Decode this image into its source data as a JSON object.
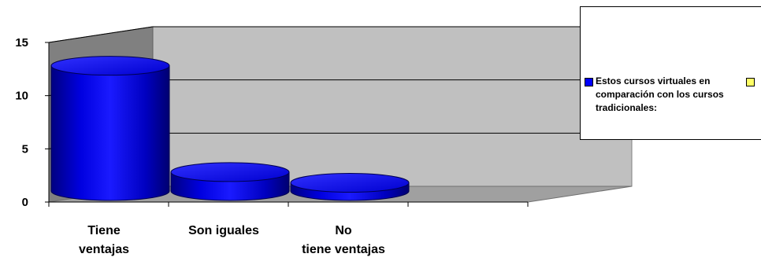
{
  "chart_data": {
    "type": "bar",
    "style": "3d-cylinder",
    "categories": [
      "Tiene ventajas",
      "Son iguales",
      "No tiene ventajas",
      ""
    ],
    "series": [
      {
        "name": "Estos cursos virtuales en comparación con los cursos tradicionales:",
        "color": "#0000ff",
        "values": [
          12,
          2,
          1,
          0
        ]
      },
      {
        "name": "",
        "color": "#ffff66",
        "values": [
          0,
          0,
          0,
          0
        ]
      }
    ],
    "yticks": [
      0,
      5,
      10,
      15
    ],
    "ylim": [
      0,
      15
    ],
    "title": "",
    "xlabel": "",
    "ylabel": "",
    "grid": true,
    "legend": "right",
    "wall_color": "#c0c0c0",
    "floor_color": "#a0a0a0"
  }
}
